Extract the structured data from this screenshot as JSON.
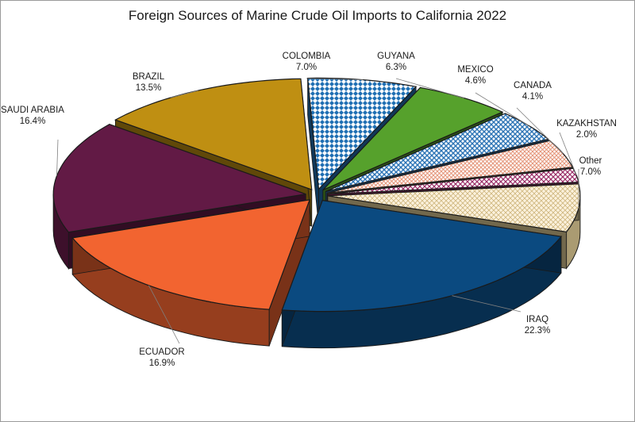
{
  "chart_data": {
    "type": "pie",
    "title": "Foreign Sources of Marine Crude Oil Imports to California 2022",
    "unit": "%",
    "slices": [
      {
        "label": "IRAQ",
        "value": 22.3,
        "value_label": "22.3%",
        "color": "#0b4a80",
        "pattern": "solid"
      },
      {
        "label": "ECUADOR",
        "value": 16.9,
        "value_label": "16.9%",
        "color": "#f26430",
        "pattern": "solid"
      },
      {
        "label": "SAUDI ARABIA",
        "value": 16.4,
        "value_label": "16.4%",
        "color": "#621a45",
        "pattern": "solid"
      },
      {
        "label": "BRAZIL",
        "value": 13.5,
        "value_label": "13.5%",
        "color": "#bf8f12",
        "pattern": "solid"
      },
      {
        "label": "COLOMBIA",
        "value": 7.0,
        "value_label": "7.0%",
        "color": "#1f6fb3",
        "pattern": "diamond"
      },
      {
        "label": "GUYANA",
        "value": 6.3,
        "value_label": "6.3%",
        "color": "#56a12c",
        "pattern": "solid"
      },
      {
        "label": "MEXICO",
        "value": 4.6,
        "value_label": "4.6%",
        "color": "#2d74b5",
        "pattern": "crosshatch"
      },
      {
        "label": "CANADA",
        "value": 4.1,
        "value_label": "4.1%",
        "color": "#e8a48a",
        "pattern": "fine-crosshatch"
      },
      {
        "label": "KAZAKHSTAN",
        "value": 2.0,
        "value_label": "2.0%",
        "color": "#9a2e68",
        "pattern": "grid"
      },
      {
        "label": "Other",
        "value": 7.0,
        "value_label": "7.0%",
        "color": "#e3cf98",
        "pattern": "dots"
      }
    ],
    "legend": "none",
    "style": "3d-exploded-pie"
  }
}
